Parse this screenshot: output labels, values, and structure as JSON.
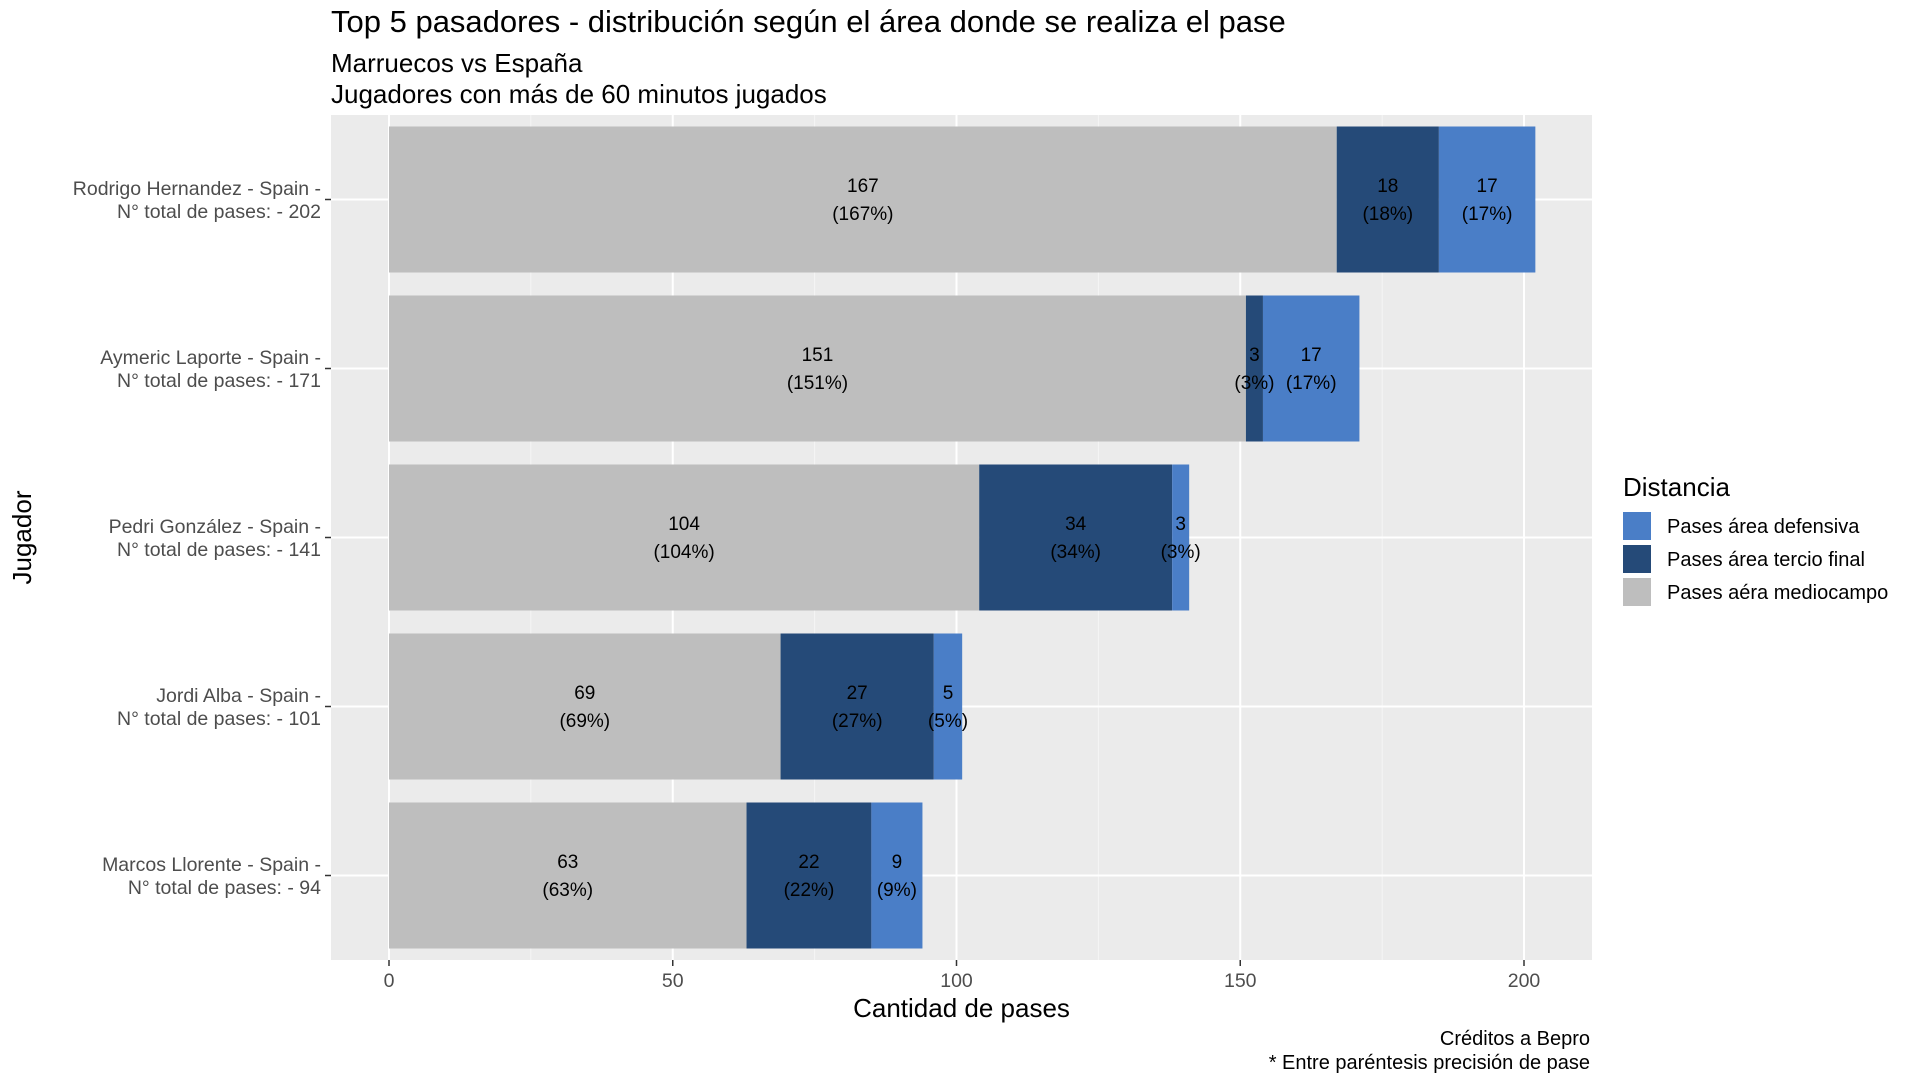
{
  "chart_data": {
    "type": "bar",
    "orientation": "horizontal",
    "stacked": true,
    "title": "Top 5 pasadores - distribución según el área donde se realiza el pase",
    "subtitle": [
      "Marruecos vs España",
      "Jugadores con más de 60 minutos jugados"
    ],
    "xlabel": "Cantidad de pases",
    "ylabel": "Jugador",
    "xlim": [
      -10,
      212
    ],
    "x_ticks": [
      0,
      50,
      100,
      150,
      200
    ],
    "grid": true,
    "legend": {
      "title": "Distancia",
      "position": "right",
      "entries": [
        {
          "label": "Pases área defensiva",
          "color": "#4A7EC7"
        },
        {
          "label": "Pases área tercio final",
          "color": "#254A78"
        },
        {
          "label": "Pases aéra mediocampo",
          "color": "#BEBEBE"
        }
      ]
    },
    "categories": [
      [
        "Rodrigo Hernandez - Spain -",
        "N° total de pases:  - 202"
      ],
      [
        "Aymeric Laporte - Spain -",
        "N° total de pases:  - 171"
      ],
      [
        "Pedri González - Spain -",
        "N° total de pases:  - 141"
      ],
      [
        "Jordi Alba - Spain -",
        "N° total de pases:  - 101"
      ],
      [
        "Marcos Llorente - Spain -",
        "N° total de pases:  - 94"
      ]
    ],
    "series": [
      {
        "name": "Pases aéra mediocampo",
        "color": "#BEBEBE",
        "values": [
          167,
          151,
          104,
          69,
          63
        ],
        "labels": [
          "167\n(167%)",
          "151\n(151%)",
          "104\n(104%)",
          "69\n(69%)",
          "63\n(63%)"
        ]
      },
      {
        "name": "Pases área tercio final",
        "color": "#254A78",
        "values": [
          18,
          3,
          34,
          27,
          22
        ],
        "labels": [
          "18\n(18%)",
          "3\n(3%)",
          "34\n(34%)",
          "27\n(27%)",
          "22\n(22%)"
        ]
      },
      {
        "name": "Pases área defensiva",
        "color": "#4A7EC7",
        "values": [
          17,
          17,
          3,
          5,
          9
        ],
        "labels": [
          "17\n(17%)",
          "17\n(17%)",
          "3\n(3%)",
          "5\n(5%)",
          "9\n(9%)"
        ]
      }
    ],
    "caption": [
      "Créditos a Bepro",
      "* Entre paréntesis precisión de pase"
    ]
  }
}
